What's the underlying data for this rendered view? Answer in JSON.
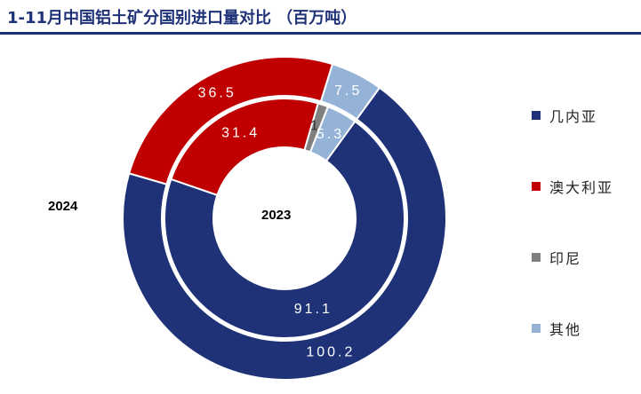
{
  "title": "1-11月中国铝土矿分国别进口量对比 （百万吨）",
  "chart_data": {
    "type": "pie",
    "style": "nested-donut",
    "categories": [
      "几内亚",
      "澳大利亚",
      "印尼",
      "其他"
    ],
    "colors": [
      "#1f3278",
      "#c00000",
      "#808080",
      "#95b3d7"
    ],
    "legend_position": "right",
    "series": [
      {
        "name": "2024",
        "ring": "outer",
        "values": [
          100.2,
          36.5,
          0,
          7.5
        ],
        "labels": [
          "100.2",
          "36.5",
          "",
          "7.5"
        ]
      },
      {
        "name": "2023",
        "ring": "inner",
        "values": [
          91.1,
          31.4,
          1.8,
          5.3
        ],
        "labels": [
          "91.1",
          "31.4",
          "1.8",
          "5.3"
        ]
      }
    ]
  }
}
